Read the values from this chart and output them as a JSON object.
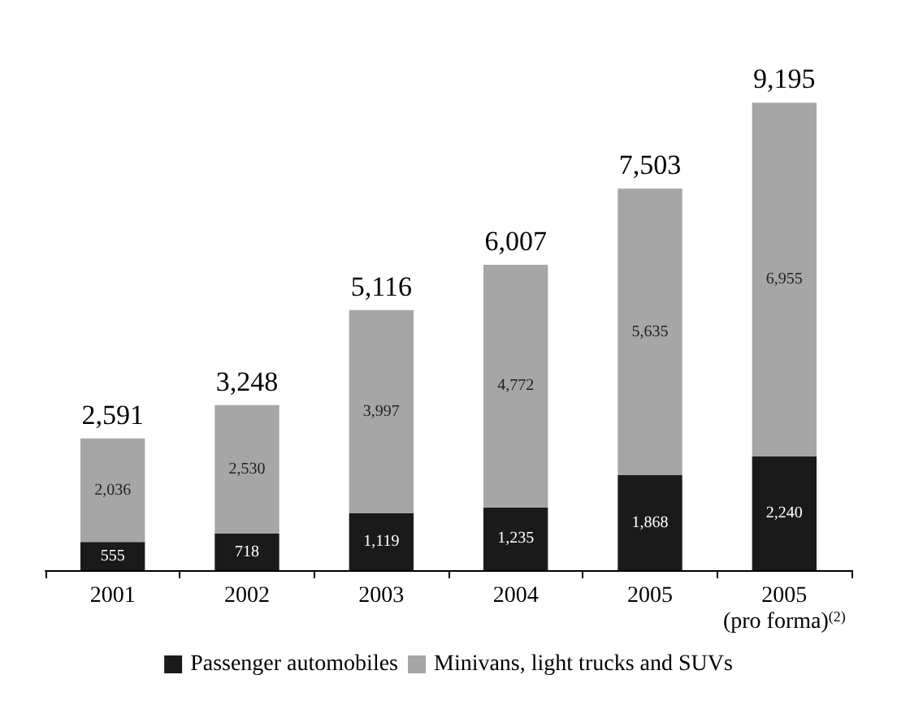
{
  "chart_data": {
    "type": "bar",
    "stacked": true,
    "legend": "bottom",
    "categories": [
      "2001",
      "2002",
      "2003",
      "2004",
      "2005",
      "2005\n(pro forma)$^{(2)}$"
    ],
    "series": [
      {
        "name": "Passenger automobiles",
        "color": "#1a1a1a",
        "values": [
          555,
          718,
          1119,
          1235,
          1868,
          2240
        ],
        "value_labels": [
          "555",
          "718",
          "1,119",
          "1,235",
          "1,868",
          "2,240"
        ]
      },
      {
        "name": "Minivans, light trucks and SUVs",
        "color": "#a6a6a6",
        "values": [
          2036,
          2530,
          3997,
          4772,
          5635,
          6955
        ],
        "value_labels": [
          "2,036",
          "2,530",
          "3,997",
          "4,772",
          "5,635",
          "6,955"
        ]
      }
    ],
    "totals": [
      "2,591",
      "3,248",
      "5,116",
      "6,007",
      "7,503",
      "9,195"
    ]
  }
}
